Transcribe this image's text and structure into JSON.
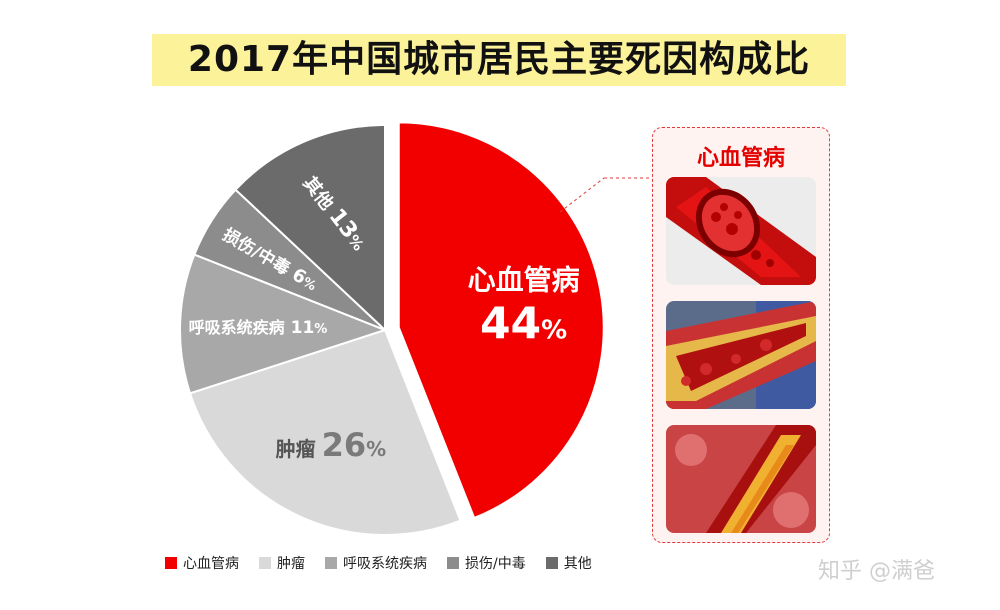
{
  "title": "2017年中国城市居民主要死因构成比",
  "chart_data": {
    "type": "pie",
    "title": "2017年中国城市居民主要死因构成比",
    "unit": "%",
    "slices": [
      {
        "label": "心血管病",
        "value": 44,
        "color": "#f20000",
        "exploded": true
      },
      {
        "label": "肿瘤",
        "value": 26,
        "color": "#d9d9d9"
      },
      {
        "label": "呼吸系统疾病",
        "value": 11,
        "color": "#a8a8a8"
      },
      {
        "label": "损伤/中毒",
        "value": 6,
        "color": "#8c8c8c"
      },
      {
        "label": "其他",
        "value": 13,
        "color": "#6b6b6b"
      }
    ],
    "legend": "bottom-left"
  },
  "callout": {
    "title": "心血管病",
    "images": [
      "artery-cross-section-illustration",
      "blood-vessel-plaque-illustration",
      "clogged-artery-illustration"
    ]
  },
  "watermark": "知乎 @满爸"
}
